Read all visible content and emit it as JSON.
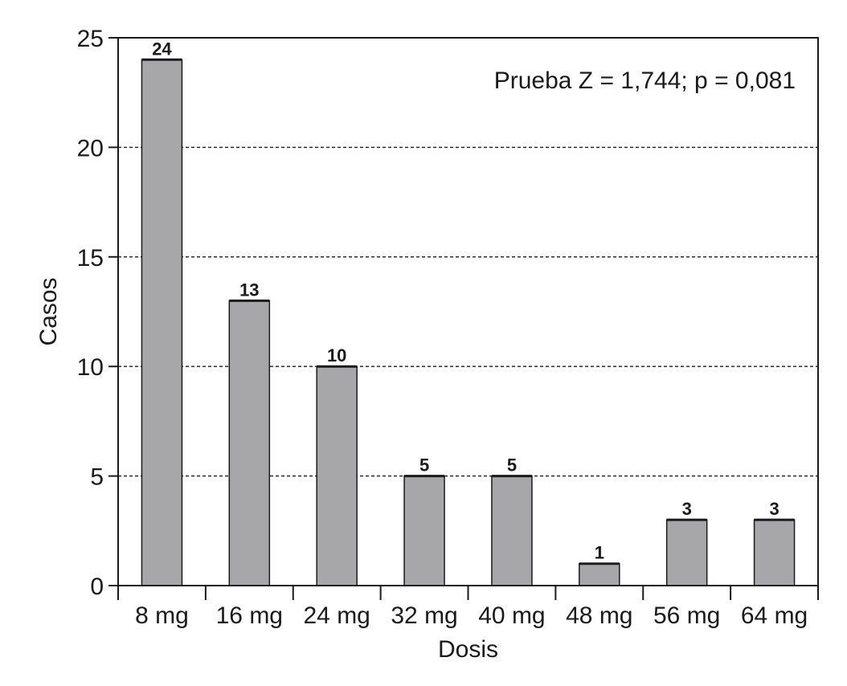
{
  "chart_data": {
    "type": "bar",
    "categories": [
      "8 mg",
      "16 mg",
      "24 mg",
      "32 mg",
      "40 mg",
      "48 mg",
      "56 mg",
      "64 mg"
    ],
    "values": [
      24,
      13,
      10,
      5,
      5,
      1,
      3,
      3
    ],
    "data_labels": [
      "24",
      "13",
      "10",
      "5",
      "5",
      "1",
      "3",
      "3"
    ],
    "xlabel": "Dosis",
    "ylabel": "Casos",
    "ylim": [
      0,
      25
    ],
    "yticks": [
      0,
      5,
      10,
      15,
      20,
      25
    ],
    "grid": "horizontal dashed",
    "annotation": "Prueba Z = 1,744; p = 0,081",
    "annotation_position": "top-right",
    "colors": {
      "bar_fill": "#a7a7a9",
      "bar_stroke": "#1a1a1a",
      "grid": "#1a1a1a"
    }
  }
}
